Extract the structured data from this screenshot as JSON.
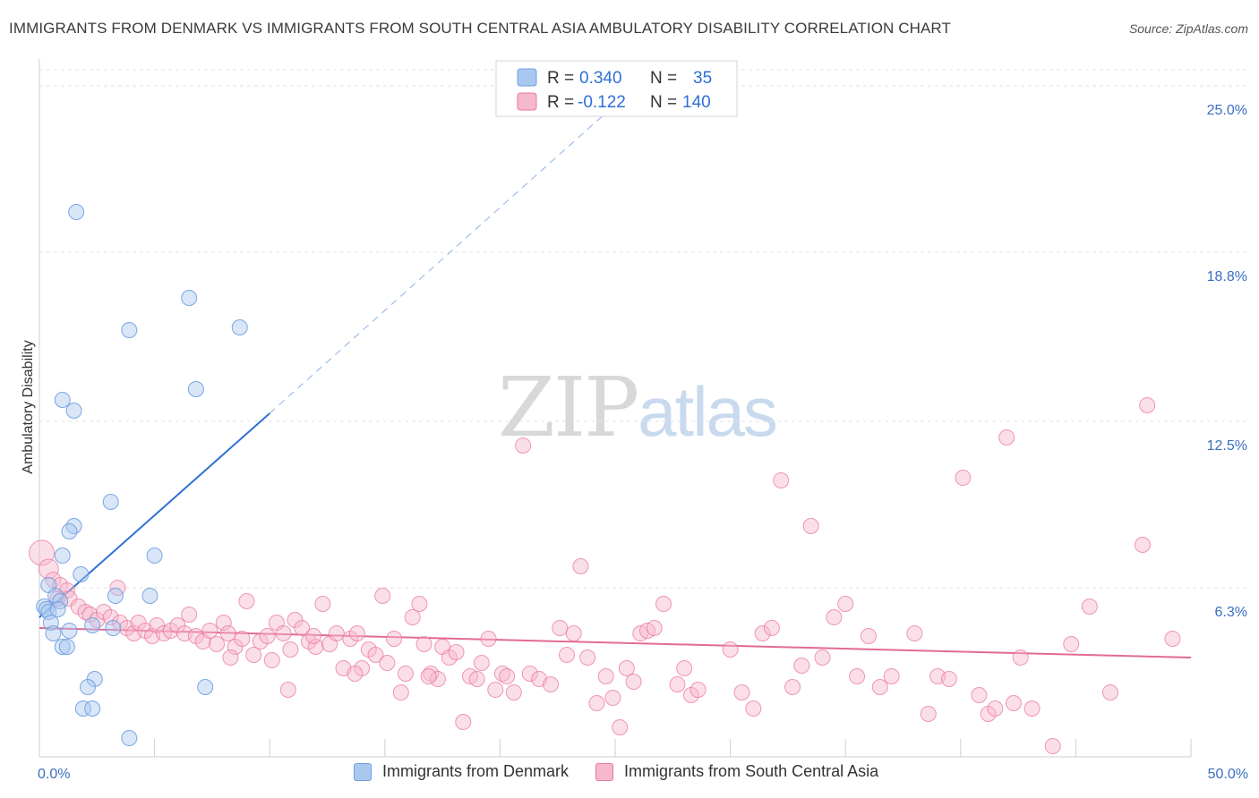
{
  "title": "IMMIGRANTS FROM DENMARK VS IMMIGRANTS FROM SOUTH CENTRAL ASIA AMBULATORY DISABILITY CORRELATION CHART",
  "source": "Source: ZipAtlas.com",
  "watermark": {
    "zip": "ZIP",
    "atlas": "atlas"
  },
  "colors": {
    "blue": "#6f9fe0",
    "blue_fill": "#a9c8f0",
    "blue_line": "#2f6fd6",
    "pink": "#e9779f",
    "pink_fill": "#f6b8cc",
    "pink_line": "#e26a96",
    "tick_label": "#3a6fbf",
    "grid": "#e2e2e2"
  },
  "legend": {
    "series": [
      {
        "r_label": "R =",
        "r_value": "0.340",
        "n_label": "N =",
        "n_value": "35"
      },
      {
        "r_label": "R =",
        "r_value": "-0.122",
        "n_label": "N =",
        "n_value": "140"
      }
    ]
  },
  "bottom_legend": [
    "Immigrants from Denmark",
    "Immigrants from South Central Asia"
  ],
  "chart_data": {
    "type": "scatter",
    "title": "IMMIGRANTS FROM DENMARK VS IMMIGRANTS FROM SOUTH CENTRAL ASIA AMBULATORY DISABILITY CORRELATION CHART",
    "xlabel": "",
    "ylabel": "Ambulatory Disability",
    "xlim": [
      0,
      50
    ],
    "ylim": [
      0,
      25.6
    ],
    "x_tick_labels": [
      {
        "value": 0,
        "label": "0.0%"
      },
      {
        "value": 50,
        "label": "50.0%"
      }
    ],
    "y_ticks": [
      {
        "value": 6.3,
        "label": "6.3%"
      },
      {
        "value": 12.5,
        "label": "12.5%"
      },
      {
        "value": 18.8,
        "label": "18.8%"
      },
      {
        "value": 25.0,
        "label": "25.0%"
      }
    ],
    "series": [
      {
        "name": "Immigrants from Denmark",
        "R": 0.34,
        "N": 35,
        "trend": {
          "x0": 0,
          "y0": 5.2,
          "x1": 10,
          "y1": 12.8,
          "dashed_to": {
            "x": 25,
            "y": 24.3
          }
        },
        "points": [
          [
            1.6,
            20.3
          ],
          [
            3.9,
            15.9
          ],
          [
            6.5,
            17.1
          ],
          [
            8.7,
            16.0
          ],
          [
            6.8,
            13.7
          ],
          [
            1.0,
            13.3
          ],
          [
            1.5,
            12.9
          ],
          [
            3.1,
            9.5
          ],
          [
            1.5,
            8.6
          ],
          [
            1.3,
            8.4
          ],
          [
            5.0,
            7.5
          ],
          [
            1.0,
            7.5
          ],
          [
            1.8,
            6.8
          ],
          [
            0.4,
            6.4
          ],
          [
            0.7,
            6.0
          ],
          [
            0.9,
            5.8
          ],
          [
            3.3,
            6.0
          ],
          [
            4.8,
            6.0
          ],
          [
            0.2,
            5.6
          ],
          [
            0.3,
            5.5
          ],
          [
            0.4,
            5.4
          ],
          [
            0.8,
            5.5
          ],
          [
            0.5,
            5.0
          ],
          [
            2.3,
            4.9
          ],
          [
            3.2,
            4.8
          ],
          [
            0.6,
            4.6
          ],
          [
            1.3,
            4.7
          ],
          [
            1.0,
            4.1
          ],
          [
            1.2,
            4.1
          ],
          [
            2.4,
            2.9
          ],
          [
            2.1,
            2.6
          ],
          [
            7.2,
            2.6
          ],
          [
            1.9,
            1.8
          ],
          [
            2.3,
            1.8
          ],
          [
            3.9,
            0.7
          ]
        ]
      },
      {
        "name": "Immigrants from South Central Asia",
        "R": -0.122,
        "N": 140,
        "trend": {
          "x0": 0,
          "y0": 4.8,
          "x1": 50,
          "y1": 3.7
        },
        "points": [
          [
            0.1,
            7.6
          ],
          [
            0.4,
            7.0
          ],
          [
            0.6,
            6.6
          ],
          [
            0.9,
            6.4
          ],
          [
            1.2,
            6.2
          ],
          [
            0.8,
            5.9
          ],
          [
            1.3,
            5.9
          ],
          [
            1.7,
            5.6
          ],
          [
            2.0,
            5.4
          ],
          [
            2.2,
            5.3
          ],
          [
            2.5,
            5.1
          ],
          [
            2.8,
            5.4
          ],
          [
            3.1,
            5.2
          ],
          [
            3.4,
            6.3
          ],
          [
            3.5,
            5.0
          ],
          [
            3.8,
            4.8
          ],
          [
            4.1,
            4.6
          ],
          [
            4.3,
            5.0
          ],
          [
            4.6,
            4.7
          ],
          [
            4.9,
            4.5
          ],
          [
            5.1,
            4.9
          ],
          [
            5.4,
            4.6
          ],
          [
            5.7,
            4.7
          ],
          [
            6.0,
            4.9
          ],
          [
            6.3,
            4.6
          ],
          [
            6.5,
            5.3
          ],
          [
            6.8,
            4.5
          ],
          [
            7.1,
            4.3
          ],
          [
            7.4,
            4.7
          ],
          [
            7.7,
            4.2
          ],
          [
            8.0,
            5.0
          ],
          [
            8.2,
            4.6
          ],
          [
            8.5,
            4.1
          ],
          [
            8.8,
            4.4
          ],
          [
            9.0,
            5.8
          ],
          [
            9.3,
            3.8
          ],
          [
            9.6,
            4.3
          ],
          [
            9.9,
            4.5
          ],
          [
            10.1,
            3.6
          ],
          [
            10.3,
            5.0
          ],
          [
            10.6,
            4.6
          ],
          [
            10.9,
            4.0
          ],
          [
            11.1,
            5.1
          ],
          [
            11.4,
            4.8
          ],
          [
            11.7,
            4.3
          ],
          [
            12.0,
            4.1
          ],
          [
            12.3,
            5.7
          ],
          [
            12.6,
            4.2
          ],
          [
            12.9,
            4.6
          ],
          [
            13.2,
            3.3
          ],
          [
            13.5,
            4.4
          ],
          [
            13.8,
            4.6
          ],
          [
            14.0,
            3.3
          ],
          [
            14.3,
            4.0
          ],
          [
            14.6,
            3.8
          ],
          [
            14.9,
            6.0
          ],
          [
            15.1,
            3.5
          ],
          [
            15.4,
            4.4
          ],
          [
            15.7,
            2.4
          ],
          [
            15.9,
            3.1
          ],
          [
            16.2,
            5.2
          ],
          [
            16.5,
            5.7
          ],
          [
            16.7,
            4.2
          ],
          [
            17.0,
            3.1
          ],
          [
            17.3,
            2.9
          ],
          [
            17.5,
            4.1
          ],
          [
            17.8,
            3.7
          ],
          [
            18.1,
            3.9
          ],
          [
            18.4,
            1.3
          ],
          [
            18.7,
            3.0
          ],
          [
            19.0,
            2.9
          ],
          [
            19.2,
            3.5
          ],
          [
            19.5,
            4.4
          ],
          [
            19.8,
            2.5
          ],
          [
            20.1,
            3.1
          ],
          [
            20.3,
            3.0
          ],
          [
            20.6,
            2.4
          ],
          [
            21.0,
            11.6
          ],
          [
            21.3,
            3.1
          ],
          [
            21.7,
            2.9
          ],
          [
            22.2,
            2.7
          ],
          [
            22.6,
            4.8
          ],
          [
            22.9,
            3.8
          ],
          [
            23.2,
            4.6
          ],
          [
            23.5,
            7.1
          ],
          [
            23.8,
            3.7
          ],
          [
            24.2,
            2.0
          ],
          [
            24.6,
            3.0
          ],
          [
            24.9,
            2.2
          ],
          [
            25.2,
            1.1
          ],
          [
            25.5,
            3.3
          ],
          [
            25.8,
            2.8
          ],
          [
            26.1,
            4.6
          ],
          [
            26.4,
            4.7
          ],
          [
            26.7,
            4.8
          ],
          [
            27.1,
            5.7
          ],
          [
            27.7,
            2.7
          ],
          [
            28.0,
            3.3
          ],
          [
            28.3,
            2.3
          ],
          [
            28.6,
            2.5
          ],
          [
            30.0,
            4.0
          ],
          [
            30.5,
            2.4
          ],
          [
            31.0,
            1.8
          ],
          [
            31.4,
            4.6
          ],
          [
            31.8,
            4.8
          ],
          [
            32.2,
            10.3
          ],
          [
            32.7,
            2.6
          ],
          [
            33.1,
            3.4
          ],
          [
            33.5,
            8.6
          ],
          [
            34.0,
            3.7
          ],
          [
            34.5,
            5.2
          ],
          [
            35.0,
            5.7
          ],
          [
            35.5,
            3.0
          ],
          [
            36.0,
            4.5
          ],
          [
            36.5,
            2.6
          ],
          [
            37.0,
            3.0
          ],
          [
            38.0,
            4.6
          ],
          [
            38.6,
            1.6
          ],
          [
            39.0,
            3.0
          ],
          [
            39.5,
            2.9
          ],
          [
            40.1,
            10.4
          ],
          [
            40.8,
            2.3
          ],
          [
            41.2,
            1.6
          ],
          [
            41.5,
            1.8
          ],
          [
            42.0,
            11.9
          ],
          [
            42.3,
            2.0
          ],
          [
            42.6,
            3.7
          ],
          [
            43.1,
            1.8
          ],
          [
            44.0,
            0.4
          ],
          [
            44.8,
            4.2
          ],
          [
            45.6,
            5.6
          ],
          [
            46.5,
            2.4
          ],
          [
            47.9,
            7.9
          ],
          [
            48.1,
            13.1
          ],
          [
            49.2,
            4.4
          ],
          [
            8.3,
            3.7
          ],
          [
            10.8,
            2.5
          ],
          [
            11.9,
            4.5
          ],
          [
            13.7,
            3.1
          ],
          [
            16.9,
            3.0
          ]
        ]
      }
    ]
  }
}
